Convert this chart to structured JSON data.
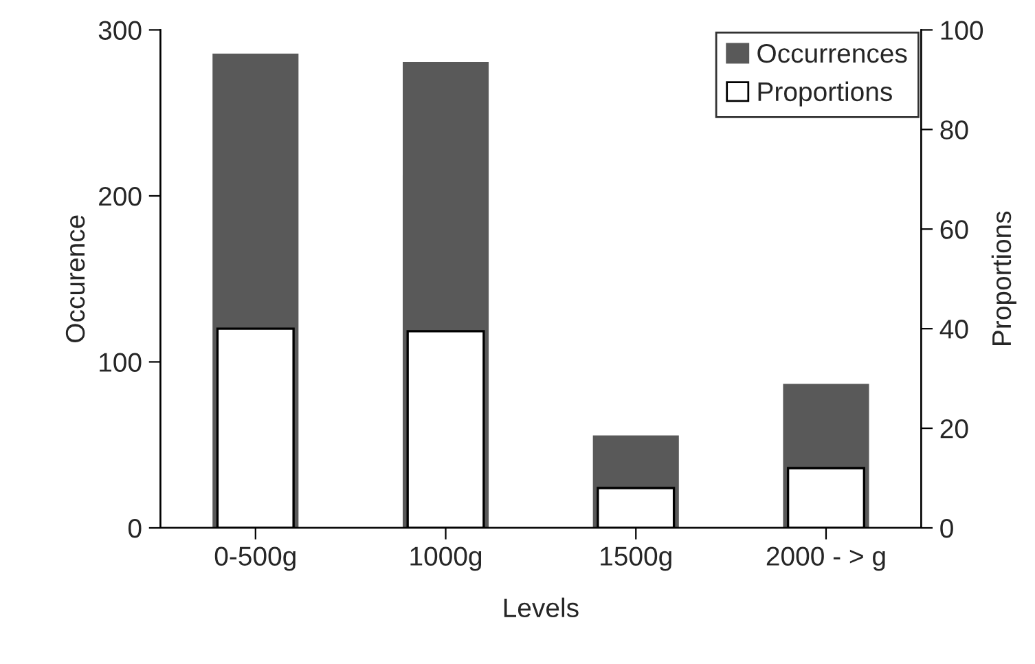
{
  "chart_data": {
    "type": "bar",
    "xlabel": "Levels",
    "ylabel": "Occurence",
    "y2label": "Proportions",
    "categories": [
      "0-500g",
      "1000g",
      "1500g",
      "2000 - > g"
    ],
    "series": [
      {
        "name": "Occurrences",
        "color": "#595959",
        "values": [
          285,
          280,
          55,
          86
        ]
      },
      {
        "name": "Proportions",
        "color": "#ffffff",
        "values": [
          40,
          39.5,
          8,
          12
        ],
        "axis": "y2"
      }
    ],
    "ylim": [
      0,
      300
    ],
    "yticks": [
      0,
      100,
      200,
      300
    ],
    "y2lim": [
      0,
      100
    ],
    "y2ticks": [
      0,
      20,
      40,
      60,
      80,
      100
    ],
    "legend": "top right",
    "grid": false
  }
}
